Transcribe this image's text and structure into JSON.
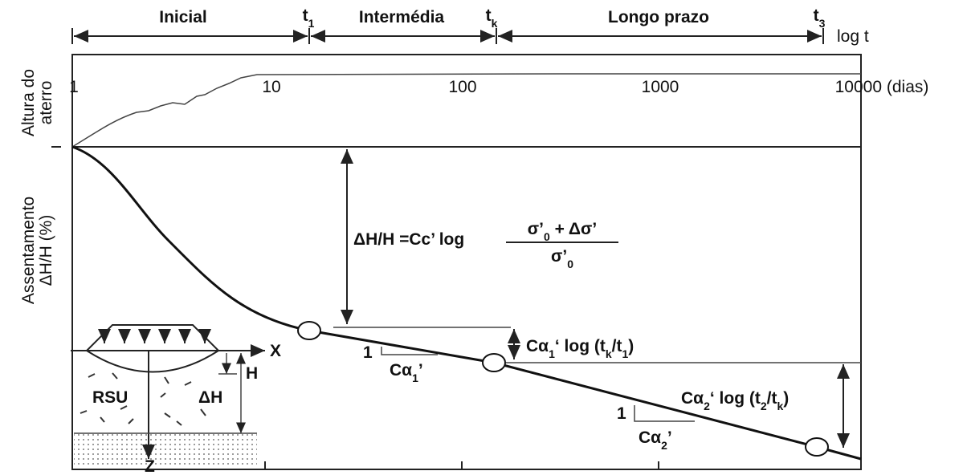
{
  "phases": {
    "inicial": "Inicial",
    "intermedia": "Intermédia",
    "longo_prazo": "Longo prazo"
  },
  "time_markers": [
    [
      "t",
      "1"
    ],
    [
      "t",
      "k"
    ],
    [
      "t",
      "3"
    ]
  ],
  "time_axis_label": "log t",
  "time_ticks": [
    "1",
    "10",
    "100",
    "1000",
    "10000 (dias)"
  ],
  "y_labels": {
    "height": [
      "Altura do",
      "aterro"
    ],
    "settlement": [
      "Assentamento",
      "ΔH/H (%)"
    ]
  },
  "formula": {
    "lhs": "ΔH/H =Cc’ log",
    "numerator": [
      "σ’",
      "0",
      " + Δσ’"
    ],
    "denominator": [
      "σ’",
      "0"
    ]
  },
  "slope1": {
    "rise": "1",
    "run": [
      "Cα",
      "1",
      "’"
    ]
  },
  "increment1": [
    "Cα",
    "1",
    "‘ log (t",
    "k",
    "/t",
    "1",
    ")"
  ],
  "slope2": {
    "rise": "1",
    "run": [
      "Cα",
      "2",
      "’"
    ]
  },
  "increment2": [
    "Cα",
    "2",
    "‘ log (t",
    "2",
    "/t",
    "k",
    ")"
  ],
  "inset": {
    "x_axis": "X",
    "height": "H",
    "material": "RSU",
    "settlement": "ΔH",
    "z_axis": "Z"
  }
}
